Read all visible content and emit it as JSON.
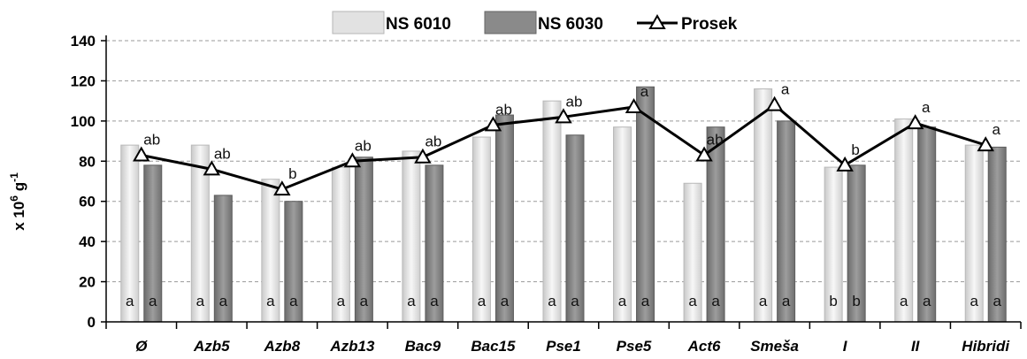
{
  "chart_data": {
    "type": "bar",
    "ylabel": "x 10",
    "ylabel_sup1": "6",
    "ylabel_unit": " g",
    "ylabel_sup2": "-1",
    "ylim": [
      0,
      140
    ],
    "yticks": [
      0,
      20,
      40,
      60,
      80,
      100,
      120,
      140
    ],
    "grid": true,
    "legend_position": "top-center",
    "categories": [
      "Ø",
      "Azb5",
      "Azb8",
      "Azb13",
      "Bac9",
      "Bac15",
      "Pse1",
      "Pse5",
      "Act6",
      "Smeša",
      "I",
      "II",
      "Hibridi"
    ],
    "series": [
      {
        "name": "NS 6010",
        "kind": "bar",
        "color": "#e2e2e2",
        "values": [
          88,
          88,
          71,
          77,
          85,
          92,
          110,
          97,
          69,
          116,
          77,
          101,
          88
        ],
        "labels": [
          "a",
          "a",
          "a",
          "a",
          "a",
          "a",
          "a",
          "a",
          "a",
          "a",
          "b",
          "a",
          "a"
        ]
      },
      {
        "name": "NS 6030",
        "kind": "bar",
        "color": "#8a8a8a",
        "values": [
          78,
          63,
          60,
          82,
          78,
          103,
          93,
          117,
          97,
          100,
          78,
          97,
          87
        ],
        "labels": [
          "a",
          "a",
          "a",
          "a",
          "a",
          "a",
          "a",
          "a",
          "a",
          "a",
          "b",
          "a",
          "a"
        ]
      },
      {
        "name": "Prosek",
        "kind": "line",
        "color": "#000000",
        "values": [
          83,
          76,
          66,
          80,
          82,
          98,
          102,
          107,
          83,
          108,
          78,
          99,
          88
        ],
        "labels": [
          "ab",
          "ab",
          "b",
          "ab",
          "ab",
          "ab",
          "ab",
          "a",
          "ab",
          "a",
          "b",
          "a",
          "a"
        ]
      }
    ]
  }
}
